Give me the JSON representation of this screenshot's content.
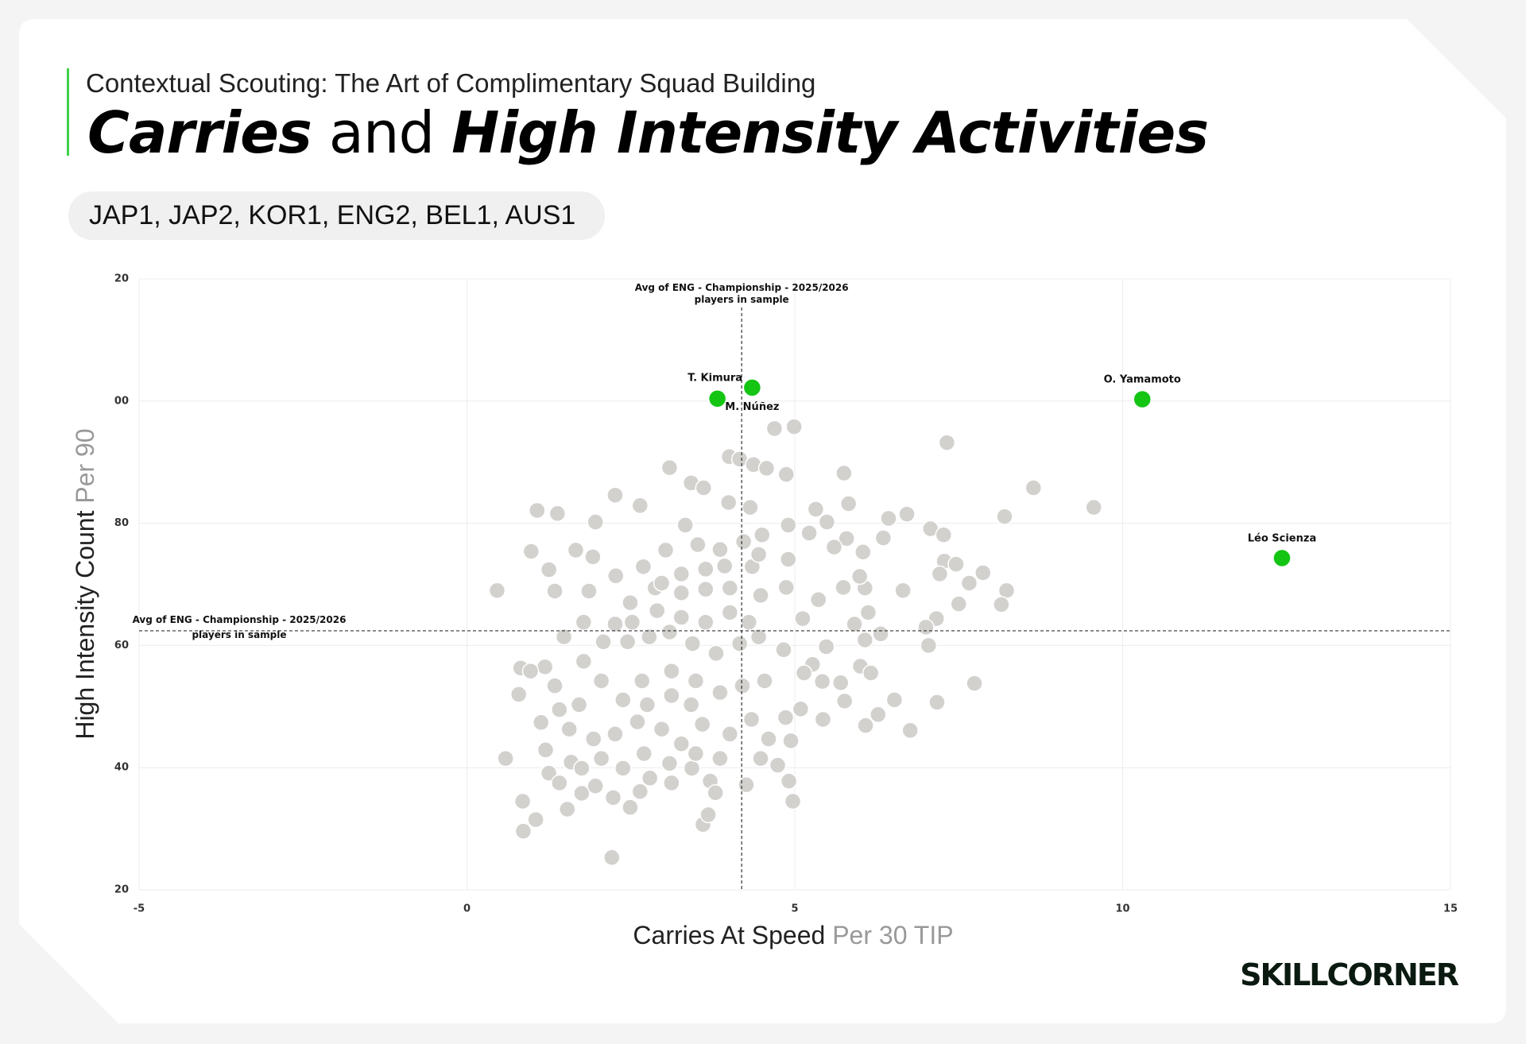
{
  "chart_data": {
    "type": "scatter",
    "subtitle": "Contextual Scouting: The Art of Complimentary Squad Building",
    "title": [
      "Carries",
      "and",
      "High Intensity Activities"
    ],
    "leagues": "JAP1, JAP2, KOR1, ENG2, BEL1, AUS1",
    "x_label": [
      "Carries At Speed",
      "Per 30 TIP"
    ],
    "y_label": [
      "High Intensity Count",
      "Per 90"
    ],
    "xlim": [
      -5,
      15
    ],
    "xticks": [
      -5,
      0,
      5,
      10,
      15
    ],
    "ylim": [
      20,
      120
    ],
    "yticks": [
      20,
      40,
      60,
      80,
      {
        "value": 100,
        "label": "00"
      },
      {
        "value": 120,
        "label": "20"
      }
    ],
    "grid": true,
    "reference_lines": {
      "x": 4.19,
      "y": 62.4,
      "label": [
        "Avg of ENG - Championship - 2025/2026",
        "players in sample"
      ]
    },
    "highlighted": {
      "color": "#14c514",
      "names": [
        "T. Kimura",
        "M. Núñez",
        "O. Yamamoto",
        "Léo Scienza"
      ],
      "x": [
        3.82,
        4.35,
        10.3,
        12.43
      ],
      "y": [
        100.4,
        102.2,
        100.3,
        74.3
      ]
    },
    "others": {
      "color": "#d3d1ce",
      "x": [
        0.46,
        0.59,
        0.86,
        0.85,
        1.07,
        0.98,
        1.38,
        1.25,
        1.34,
        1.96,
        1.66,
        1.92,
        2.26,
        2.64,
        3.09,
        3.42,
        3.61,
        4.0,
        4.16,
        4.37,
        4.57,
        4.87,
        4.69,
        4.99,
        5.75,
        7.32,
        5.82,
        5.32,
        6.43,
        6.71,
        8.2,
        8.64,
        9.56,
        7.07,
        7.27,
        7.28,
        7.87,
        8.23,
        8.15,
        7.74,
        7.04,
        6.76,
        7.17,
        6.52,
        6.08,
        5.43,
        4.97,
        3.6,
        2.21,
        1.53,
        1.05,
        6.04,
        6.35,
        5.79,
        5.6,
        4.9,
        4.32,
        3.99,
        3.33,
        3.52,
        3.03,
        2.69,
        2.27,
        1.86,
        1.78,
        1.48,
        1.19,
        0.82,
        0.79,
        1.13,
        1.2,
        1.25,
        1.59,
        1.75,
        1.96,
        2.23,
        2.49,
        2.64,
        2.79,
        3.12,
        3.43,
        3.71,
        3.79,
        3.68,
        4.26,
        4.48,
        4.74,
        4.91,
        4.94,
        4.86,
        5.09,
        5.42,
        5.27,
        5.48,
        5.7,
        5.76,
        6.0,
        6.16,
        6.27,
        6.31,
        6.07,
        5.91,
        6.12,
        5.74,
        6.07,
        5.99,
        6.65,
        7.16,
        7.5,
        7.46,
        7.0,
        5.12,
        5.36,
        4.87,
        4.48,
        4.01,
        3.64,
        3.27,
        2.87,
        2.49,
        2.26,
        2.08,
        2.45,
        2.78,
        3.09,
        3.44,
        3.8,
        4.16,
        4.45,
        4.83,
        5.14,
        4.54,
        4.2,
        3.86,
        3.49,
        3.12,
        2.75,
        2.38,
        2.05,
        1.71,
        1.41,
        1.56,
        1.93,
        2.26,
        2.6,
        2.97,
        3.27,
        3.59,
        4.01,
        4.34,
        4.6,
        3.86,
        3.49,
        3.09,
        2.7,
        2.38,
        2.05,
        1.75,
        1.41,
        3.12,
        3.42,
        2.67,
        1.78,
        1.34,
        0.97,
        4.01,
        4.3,
        3.64,
        3.27,
        2.9,
        2.52,
        3.93,
        4.35,
        4.45,
        4.5,
        4.22,
        3.86,
        3.64,
        3.27,
        2.97,
        4.9,
        5.22,
        5.49,
        7.21,
        7.66
      ],
      "y": [
        69.0,
        41.5,
        29.6,
        34.5,
        82.1,
        75.4,
        81.6,
        72.4,
        68.9,
        80.2,
        75.6,
        74.5,
        84.6,
        82.9,
        89.1,
        86.6,
        85.8,
        90.9,
        90.5,
        89.6,
        89.0,
        88.0,
        95.5,
        95.8,
        88.2,
        93.2,
        83.2,
        82.3,
        80.8,
        81.5,
        81.1,
        85.8,
        82.6,
        79.1,
        78.1,
        73.8,
        71.9,
        69.0,
        66.7,
        53.8,
        60.0,
        46.1,
        50.7,
        51.1,
        46.9,
        47.9,
        34.5,
        30.7,
        25.3,
        33.2,
        31.5,
        75.3,
        77.6,
        77.5,
        76.1,
        79.7,
        82.6,
        83.4,
        79.7,
        76.5,
        75.6,
        72.9,
        71.4,
        68.9,
        63.8,
        61.4,
        56.5,
        56.3,
        52.0,
        47.4,
        42.9,
        39.1,
        40.9,
        35.8,
        37.0,
        35.1,
        33.5,
        36.1,
        38.3,
        37.5,
        39.9,
        37.8,
        35.9,
        32.3,
        37.2,
        41.5,
        40.4,
        37.8,
        44.4,
        48.2,
        49.6,
        54.1,
        56.9,
        59.8,
        53.9,
        50.9,
        56.6,
        55.5,
        48.7,
        61.9,
        60.9,
        63.5,
        65.4,
        69.5,
        69.4,
        71.3,
        69.0,
        64.4,
        66.8,
        73.3,
        63.0,
        64.4,
        67.5,
        69.5,
        68.2,
        69.4,
        69.2,
        68.6,
        69.4,
        67.0,
        63.5,
        60.6,
        60.6,
        61.4,
        62.2,
        60.3,
        58.7,
        60.3,
        61.4,
        59.3,
        55.5,
        54.2,
        53.4,
        52.3,
        54.2,
        51.8,
        50.3,
        51.1,
        54.2,
        50.3,
        49.5,
        46.3,
        44.7,
        45.5,
        47.5,
        46.3,
        43.9,
        47.1,
        45.5,
        47.9,
        44.7,
        41.5,
        42.3,
        40.7,
        42.3,
        39.9,
        41.5,
        39.9,
        37.5,
        55.8,
        50.3,
        54.2,
        57.4,
        53.4,
        55.8,
        65.4,
        63.8,
        63.8,
        64.6,
        65.7,
        63.8,
        73.0,
        72.9,
        74.9,
        78.1,
        77.0,
        75.7,
        72.5,
        71.7,
        70.2,
        74.1,
        78.4,
        80.2,
        71.7,
        70.2
      ]
    },
    "brand": "SKILLCORNER"
  }
}
